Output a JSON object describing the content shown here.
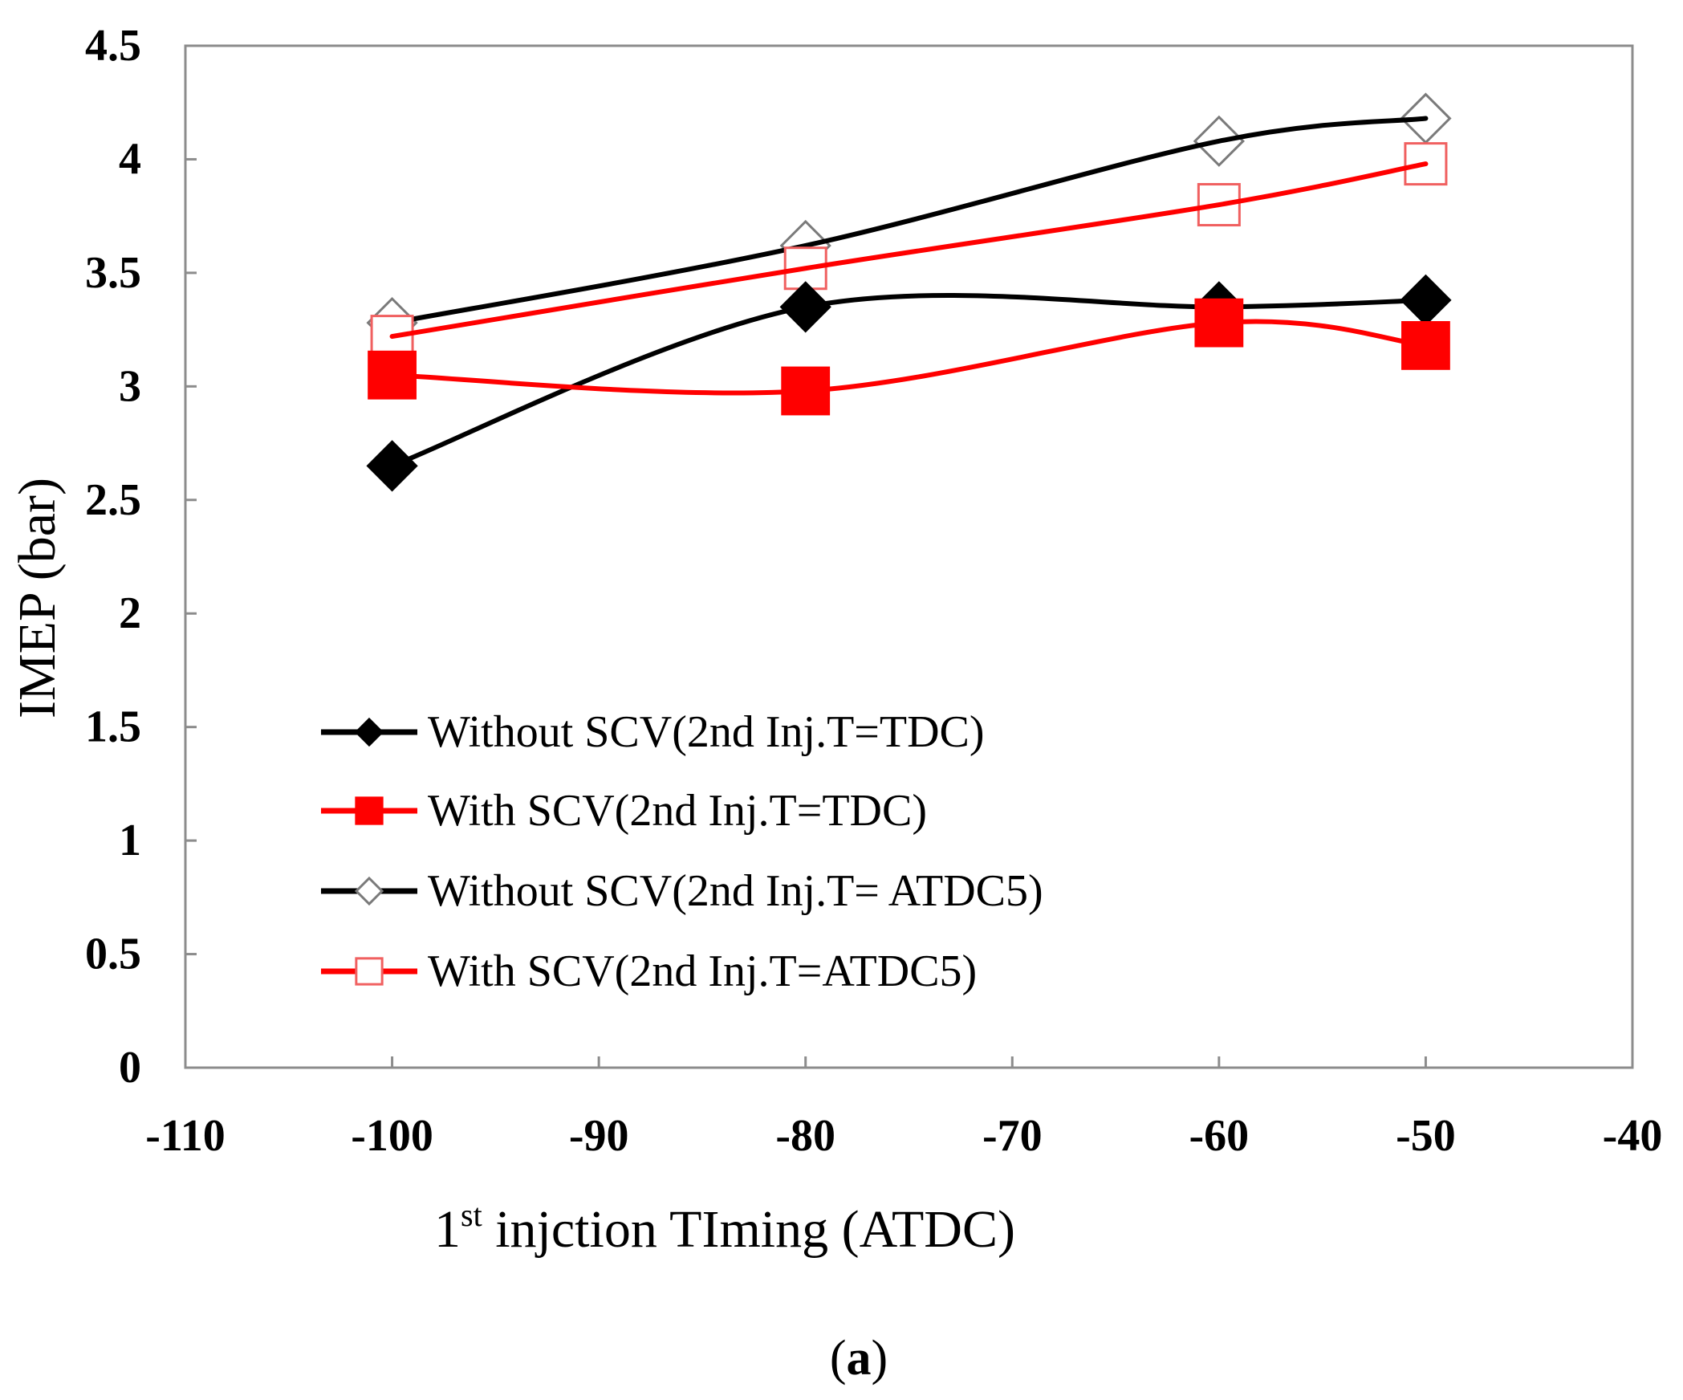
{
  "chart_data": {
    "type": "line",
    "x": [
      -100,
      -80,
      -60,
      -50
    ],
    "xlabel": "1st injction TIming (ATDC)",
    "xlabel_base": "1",
    "xlabel_sup": "st",
    "xlabel_rest": " injction TIming (ATDC)",
    "ylabel": "IMEP (bar)",
    "xlim": [
      -110,
      -40
    ],
    "ylim": [
      0,
      4.5
    ],
    "xticks": [
      "-110",
      "-100",
      "-90",
      "-80",
      "-70",
      "-60",
      "-50",
      "-40"
    ],
    "yticks": [
      "0",
      "0.5",
      "1",
      "1.5",
      "2",
      "2.5",
      "3",
      "3.5",
      "4",
      "4.5"
    ],
    "grid": false,
    "legend_position": "bottom-left",
    "series": [
      {
        "name": "Without SCV(2nd Inj.T=TDC)",
        "values": [
          2.65,
          3.35,
          3.35,
          3.38
        ],
        "color": "#000000",
        "marker": "filled-diamond"
      },
      {
        "name": "With SCV(2nd Inj.T=TDC)",
        "values": [
          3.05,
          2.98,
          3.28,
          3.18
        ],
        "color": "#ff0000",
        "marker": "filled-square"
      },
      {
        "name": "Without SCV(2nd Inj.T= ATDC5)",
        "values": [
          3.28,
          3.62,
          4.08,
          4.18
        ],
        "color": "#000000",
        "marker": "open-diamond"
      },
      {
        "name": "With SCV(2nd Inj.T=ATDC5)",
        "values": [
          3.22,
          3.52,
          3.8,
          3.98
        ],
        "color": "#ff0000",
        "marker": "open-square"
      }
    ]
  },
  "caption": {
    "open": "(",
    "letter": "a",
    "close": ")"
  }
}
